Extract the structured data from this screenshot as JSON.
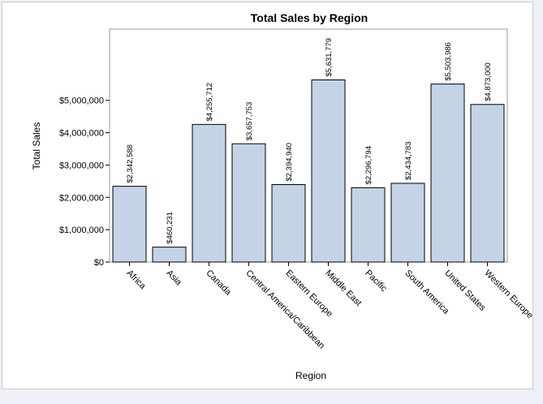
{
  "chart_data": {
    "type": "bar",
    "title": "Total Sales by Region",
    "xlabel": "Region",
    "ylabel": "Total Sales",
    "categories": [
      "Africa",
      "Asia",
      "Canada",
      "Central America/Caribbean",
      "Eastern Europe",
      "Middle East",
      "Pacific",
      "South America",
      "United States",
      "Western Europe"
    ],
    "values": [
      2342588,
      460231,
      4255712,
      3657753,
      2394940,
      5631779,
      2296794,
      2434783,
      5503986,
      4873000
    ],
    "data_labels": [
      "$2,342,588",
      "$460,231",
      "$4,255,712",
      "$3,657,753",
      "$2,394,940",
      "$5,631,779",
      "$2,296,794",
      "$2,434,783",
      "$5,503,986",
      "$4,873,000"
    ],
    "yticks": [
      0,
      1000000,
      2000000,
      3000000,
      4000000,
      5000000
    ],
    "ytick_labels": [
      "$0",
      "$1,000,000",
      "$2,000,000",
      "$3,000,000",
      "$4,000,000",
      "$5,000,000"
    ],
    "ylim": [
      0,
      7200000
    ],
    "grid": false,
    "bar_color": "#c5d3e6",
    "background": "#eef0f7"
  }
}
